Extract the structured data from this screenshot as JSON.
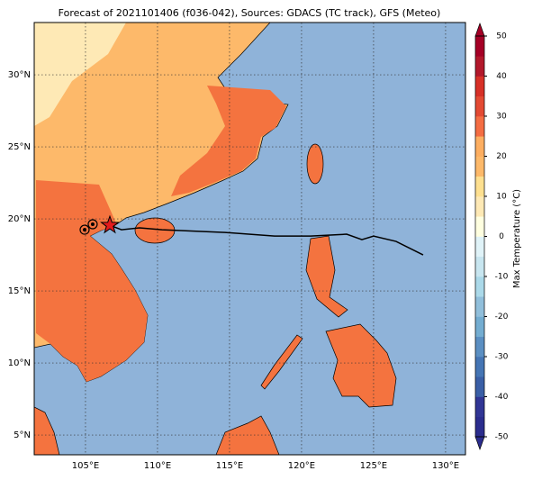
{
  "chart_data": {
    "type": "map",
    "title": "Forecast of 2021101406 (f036-042), Sources: GDACS (TC track), GFS (Meteo)",
    "xlim": [
      101.44,
      131.38
    ],
    "ylim": [
      3.63,
      33.63
    ],
    "xticks": [
      {
        "value": 105,
        "label": "105°E"
      },
      {
        "value": 110,
        "label": "110°E"
      },
      {
        "value": 115,
        "label": "115°E"
      },
      {
        "value": 120,
        "label": "120°E"
      },
      {
        "value": 125,
        "label": "125°E"
      },
      {
        "value": 130,
        "label": "130°E"
      }
    ],
    "yticks": [
      {
        "value": 5,
        "label": "5°N"
      },
      {
        "value": 10,
        "label": "10°N"
      },
      {
        "value": 15,
        "label": "15°N"
      },
      {
        "value": 20,
        "label": "20°N"
      },
      {
        "value": 25,
        "label": "25°N"
      },
      {
        "value": 30,
        "label": "30°N"
      }
    ],
    "grid": true,
    "track": {
      "color": "#000000",
      "lon": [
        106.69,
        107.5,
        108.75,
        110.31,
        114.69,
        118.13,
        120.63,
        123.13,
        124.19,
        125.0,
        126.56,
        128.44
      ],
      "lat": [
        19.56,
        19.25,
        19.38,
        19.25,
        19.06,
        18.81,
        18.81,
        18.94,
        18.56,
        18.81,
        18.44,
        17.5
      ]
    },
    "star_color": "#e41a1c",
    "past_positions": {
      "lon": [
        104.94,
        105.5
      ],
      "lat": [
        19.25,
        19.63
      ]
    },
    "colorbar": {
      "label": "Max Temperature (°C)",
      "lim": [
        -50,
        50
      ],
      "ticks": [
        50,
        40,
        30,
        20,
        10,
        0,
        -10,
        -20,
        -30,
        -40,
        -50
      ],
      "colors": [
        "#2b2d8e",
        "#313695",
        "#3a5fa6",
        "#4575b4",
        "#5b8fc2",
        "#74add1",
        "#91bfdb",
        "#abd9e9",
        "#c8e6f0",
        "#e0f3f8",
        "#ffffe0",
        "#fee9b5",
        "#fee090",
        "#fdb96a",
        "#fdae61",
        "#f46d43",
        "#e34a33",
        "#d73027",
        "#b2182b",
        "#a50026"
      ]
    }
  }
}
